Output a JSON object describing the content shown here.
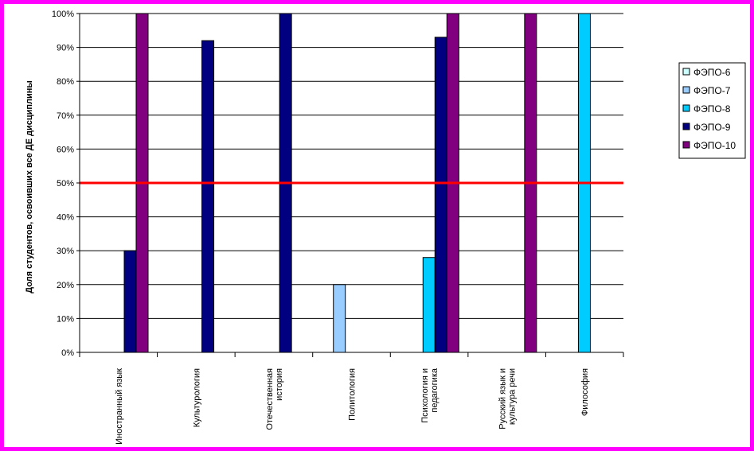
{
  "chart_data": {
    "type": "bar",
    "title": "",
    "ylabel": "Доля студентов, освоивших все ДЕ дисциплины",
    "xlabel": "",
    "ylim": [
      0,
      100
    ],
    "y_ticks": [
      "0%",
      "10%",
      "20%",
      "30%",
      "40%",
      "50%",
      "60%",
      "70%",
      "80%",
      "90%",
      "100%"
    ],
    "categories": [
      "Иностранный язык",
      "Культурология",
      "Отечественная история",
      "Политология",
      "Психология и педагогика",
      "Русский язык и культура речи",
      "Философия"
    ],
    "category_lines": [
      [
        "Иностранный язык"
      ],
      [
        "Культурология"
      ],
      [
        "Отечественная",
        "история"
      ],
      [
        "Политология"
      ],
      [
        "Психология и",
        "педагогика"
      ],
      [
        "Русский язык и",
        "культура речи"
      ],
      [
        "Философия"
      ]
    ],
    "series": [
      {
        "name": "ФЭПО-6",
        "color": "#ccffff",
        "values": [
          null,
          null,
          null,
          null,
          null,
          null,
          null
        ]
      },
      {
        "name": "ФЭПО-7",
        "color": "#99ccff",
        "values": [
          null,
          null,
          null,
          20,
          null,
          null,
          null
        ]
      },
      {
        "name": "ФЭПО-8",
        "color": "#00ccff",
        "values": [
          null,
          null,
          null,
          null,
          28,
          null,
          100
        ]
      },
      {
        "name": "ФЭПО-9",
        "color": "#000080",
        "values": [
          30,
          92,
          100,
          null,
          93,
          null,
          null
        ]
      },
      {
        "name": "ФЭПО-10",
        "color": "#800080",
        "values": [
          100,
          null,
          null,
          null,
          100,
          100,
          null
        ]
      }
    ],
    "threshold": {
      "value": 50,
      "color": "#ff0000"
    },
    "grid": true,
    "legend_position": "right"
  }
}
